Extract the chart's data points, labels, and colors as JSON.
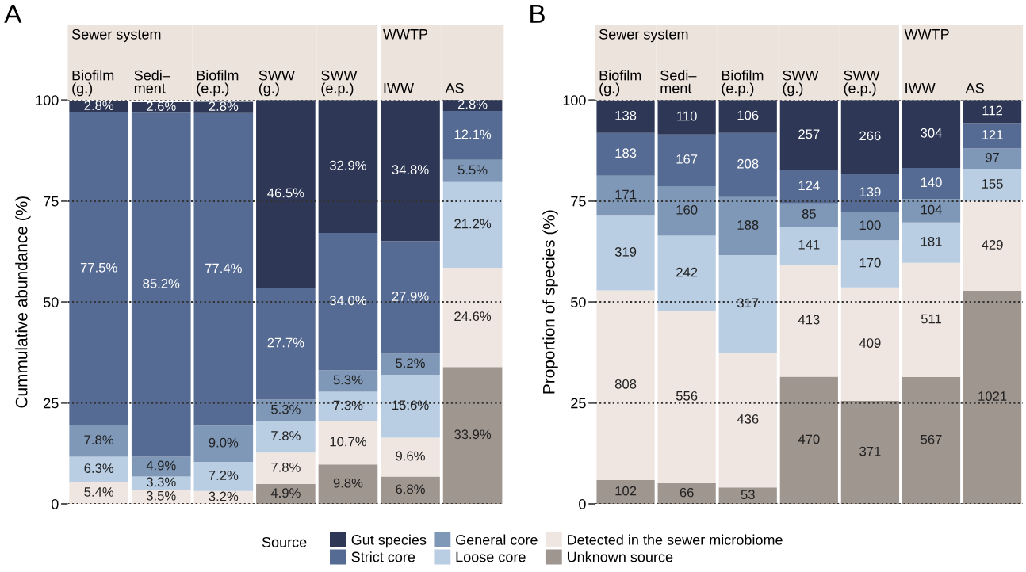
{
  "chart_data": [
    {
      "type": "bar",
      "stacked": true,
      "title": "A",
      "ylabel": "Cummulative abundance (%)",
      "annotations": [
        "Sewer system",
        "WWTP"
      ],
      "categories": [
        "Biofilm\n(g.)",
        "Sedi–\nment",
        "Biofilm\n(e.p.)",
        "SWW\n(g.)",
        "SWW\n(e.p.)",
        "IWW",
        "AS"
      ],
      "ylim": [
        0,
        100
      ],
      "yticks": [
        0,
        25,
        50,
        75,
        100
      ],
      "grid": "y",
      "legend": "bottom",
      "legend_title": "Source",
      "series": [
        {
          "name": "Unknown source",
          "color": "#a09690",
          "values": [
            null,
            null,
            null,
            4.9,
            9.8,
            6.8,
            33.9
          ],
          "value_labels": [
            null,
            null,
            null,
            "4.9%",
            "9.8%",
            "6.8%",
            "33.9%"
          ]
        },
        {
          "name": "Detected in the sewer microbiome",
          "color": "#efe6e1",
          "values": [
            5.4,
            3.5,
            3.2,
            7.8,
            10.7,
            9.6,
            24.6
          ],
          "value_labels": [
            "5.4%",
            "3.5%",
            "3.2%",
            "7.8%",
            "10.7%",
            "9.6%",
            "24.6%"
          ]
        },
        {
          "name": "Loose core",
          "color": "#b9cde3",
          "values": [
            6.3,
            3.3,
            7.2,
            7.8,
            7.3,
            15.6,
            21.2
          ],
          "value_labels": [
            "6.3%",
            "3.3%",
            "7.2%",
            "7.8%",
            "7.3%",
            "15.6%",
            "21.2%"
          ]
        },
        {
          "name": "General core",
          "color": "#7f98b8",
          "values": [
            7.8,
            4.9,
            9.0,
            5.3,
            5.3,
            5.2,
            5.5
          ],
          "value_labels": [
            "7.8%",
            "4.9%",
            "9.0%",
            "5.3%",
            "5.3%",
            "5.2%",
            "5.5%"
          ]
        },
        {
          "name": "Strict core",
          "color": "#566b93",
          "values": [
            77.5,
            85.2,
            77.4,
            27.7,
            34.0,
            27.9,
            12.1
          ],
          "value_labels": [
            "77.5%",
            "85.2%",
            "77.4%",
            "27.7%",
            "34.0%",
            "27.9%",
            "12.1%"
          ]
        },
        {
          "name": "Gut species",
          "color": "#2e3856",
          "values": [
            2.8,
            2.6,
            2.8,
            46.5,
            32.9,
            34.8,
            2.8
          ],
          "value_labels": [
            "2.8%",
            "2.6%",
            "2.8%",
            "46.5%",
            "32.9%",
            "34.8%",
            "2.8%"
          ]
        }
      ]
    },
    {
      "type": "bar",
      "stacked": true,
      "title": "B",
      "ylabel": "Proportion of species (%)",
      "annotations": [
        "Sewer system",
        "WWTP",
        "102",
        "808",
        "319",
        "171",
        "183",
        "138",
        "66",
        "556",
        "242",
        "160",
        "167",
        "110",
        "53",
        "436",
        "317",
        "188",
        "208",
        "106",
        "470",
        "413",
        "141",
        "85",
        "124",
        "257",
        "371",
        "409",
        "170",
        "100",
        "139",
        "266",
        "567",
        "511",
        "181",
        "104",
        "140",
        "304",
        "1021",
        "429",
        "155",
        "97",
        "121",
        "112"
      ],
      "categories": [
        "Biofilm\n(g.)",
        "Sedi–\nment",
        "Biofilm\n(e.p.)",
        "SWW\n(g.)",
        "SWW\n(e.p.)",
        "IWW",
        "AS"
      ],
      "ylim": [
        0,
        100
      ],
      "yticks": [
        0,
        25,
        50,
        75,
        100
      ],
      "grid": "y",
      "series": [
        {
          "color": "#a09690",
          "values": [
            5.9,
            5.1,
            4.1,
            31.5,
            25.5,
            31.4,
            52.8
          ]
        },
        {
          "color": "#efe6e1",
          "values": [
            47.0,
            42.7,
            33.3,
            27.7,
            28.1,
            28.3,
            22.2
          ]
        },
        {
          "color": "#b9cde3",
          "values": [
            18.5,
            18.6,
            24.2,
            9.5,
            11.7,
            10.0,
            8.0
          ]
        },
        {
          "color": "#7f98b8",
          "values": [
            9.9,
            12.3,
            14.4,
            5.7,
            6.9,
            5.8,
            5.0
          ]
        },
        {
          "color": "#566b93",
          "values": [
            10.6,
            12.8,
            15.9,
            8.3,
            9.6,
            7.7,
            6.3
          ]
        },
        {
          "color": "#2e3856",
          "values": [
            8.0,
            8.5,
            8.1,
            17.2,
            18.2,
            16.8,
            5.7
          ]
        }
      ]
    }
  ]
}
